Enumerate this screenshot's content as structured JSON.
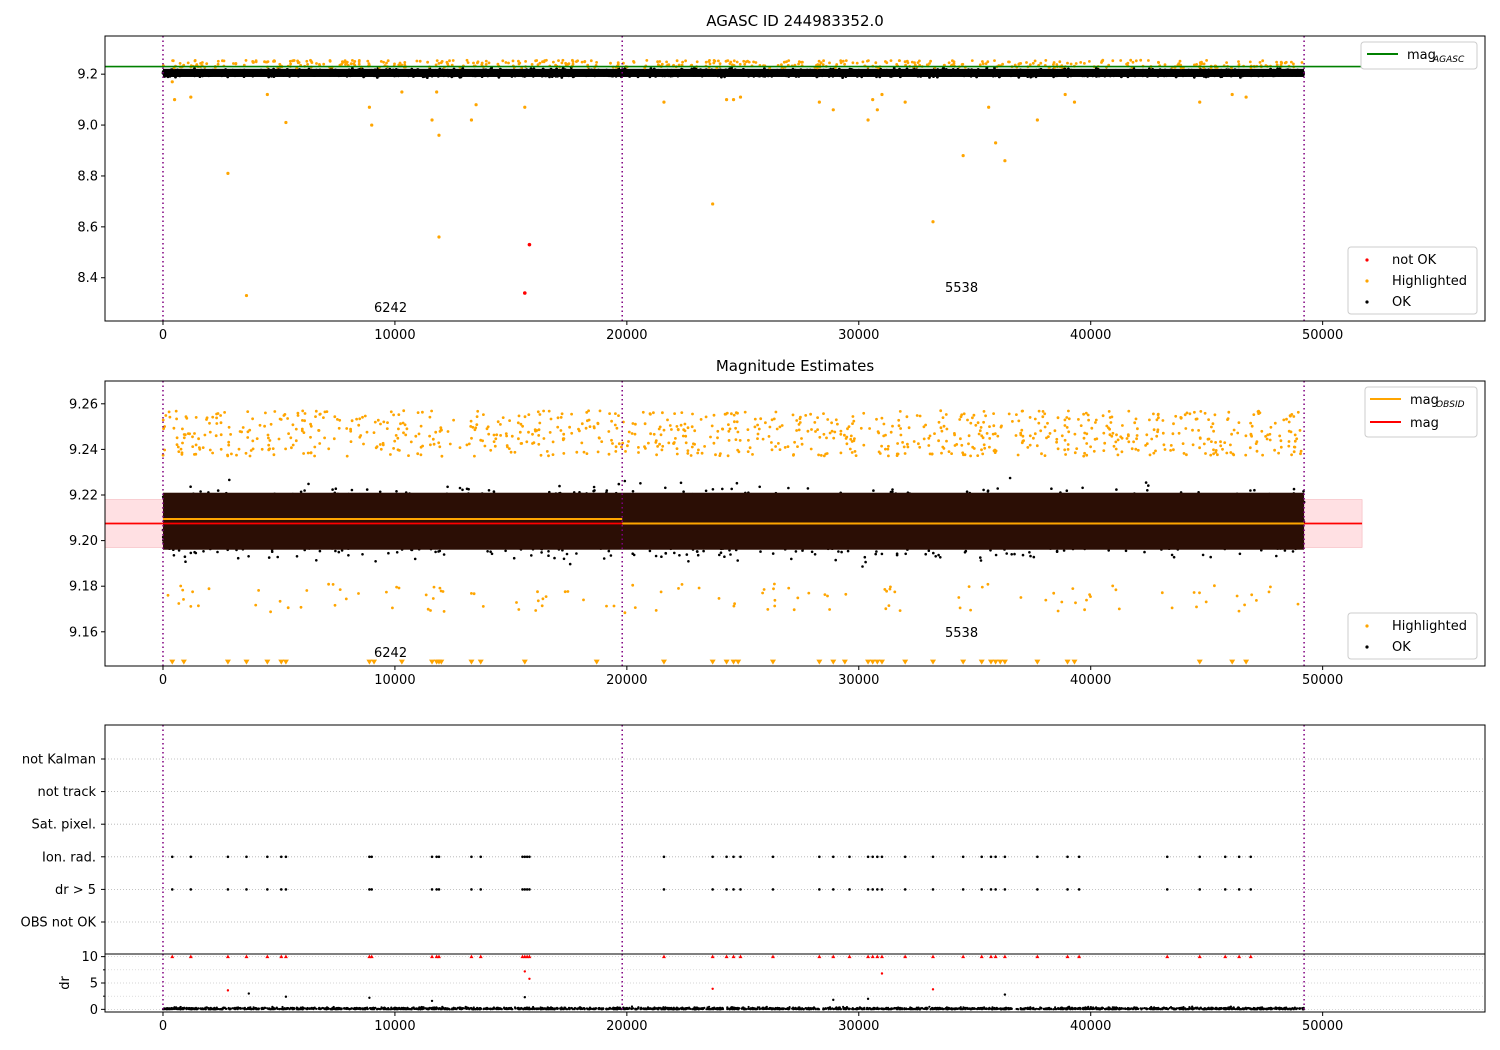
{
  "chart_data": [
    {
      "type": "scatter",
      "title": "AGASC ID 244983352.0",
      "xlabel": "",
      "ylabel": "",
      "xlim": [
        -2500,
        57000
      ],
      "ylim": [
        8.23,
        9.35
      ],
      "xticks": [
        0,
        10000,
        20000,
        30000,
        40000,
        50000
      ],
      "xtick_labels": [
        "0",
        "10000",
        "20000",
        "30000",
        "40000",
        "50000"
      ],
      "yticks": [
        8.4,
        8.6,
        8.8,
        9.0,
        9.2
      ],
      "ytick_labels": [
        "8.4",
        "8.6",
        "8.8",
        "9.0",
        "9.2"
      ],
      "obs_boundaries": [
        0,
        19800,
        49200
      ],
      "mag_agasc": 9.23,
      "colors": {
        "ok": "#000000",
        "highlighted": "#ffa500",
        "not_ok": "#ff0000",
        "agasc": "#008000",
        "obs_line": "#800080"
      },
      "ok_band": {
        "x_range": [
          0,
          49200
        ],
        "center": 9.205,
        "half_width": 0.02
      },
      "series": [
        {
          "name": "not OK",
          "points": [
            [
              15800,
              8.53
            ],
            [
              15600,
              8.34
            ]
          ]
        },
        {
          "name": "Highlighted",
          "points": [
            [
              400,
              9.17
            ],
            [
              500,
              9.1
            ],
            [
              1200,
              9.11
            ],
            [
              2800,
              8.81
            ],
            [
              3600,
              8.33
            ],
            [
              4500,
              9.12
            ],
            [
              5300,
              9.01
            ],
            [
              8900,
              9.07
            ],
            [
              9000,
              9.0
            ],
            [
              10300,
              9.13
            ],
            [
              11600,
              9.02
            ],
            [
              11800,
              9.13
            ],
            [
              11900,
              8.96
            ],
            [
              11900,
              8.56
            ],
            [
              13300,
              9.02
            ],
            [
              13500,
              9.08
            ],
            [
              15600,
              9.07
            ],
            [
              21600,
              9.09
            ],
            [
              23700,
              8.69
            ],
            [
              24300,
              9.1
            ],
            [
              24600,
              9.1
            ],
            [
              24900,
              9.11
            ],
            [
              28300,
              9.09
            ],
            [
              28900,
              9.06
            ],
            [
              30400,
              9.02
            ],
            [
              30600,
              9.1
            ],
            [
              30800,
              9.06
            ],
            [
              31000,
              9.12
            ],
            [
              32000,
              9.09
            ],
            [
              33200,
              8.62
            ],
            [
              34500,
              8.88
            ],
            [
              35600,
              9.07
            ],
            [
              35900,
              8.93
            ],
            [
              36300,
              8.86
            ],
            [
              37700,
              9.02
            ],
            [
              38900,
              9.12
            ],
            [
              39300,
              9.09
            ],
            [
              44700,
              9.09
            ],
            [
              46100,
              9.12
            ],
            [
              46700,
              9.11
            ]
          ]
        },
        {
          "name": "OK",
          "points": []
        }
      ],
      "legend": [
        {
          "label": "mag",
          "sub": "AGASC",
          "kind": "line",
          "color": "#008000"
        },
        {
          "label": "not OK",
          "kind": "dot",
          "color": "#ff0000"
        },
        {
          "label": "Highlighted",
          "kind": "dot",
          "color": "#ffa500"
        },
        {
          "label": "OK",
          "kind": "dot",
          "color": "#000000"
        }
      ],
      "annotations": [
        {
          "text": "6242",
          "x": 9200,
          "y": 8.28
        },
        {
          "text": "5538",
          "x": 33800,
          "y": 8.36
        }
      ]
    },
    {
      "type": "scatter",
      "title": "Magnitude Estimates",
      "xlabel": "",
      "ylabel": "",
      "xlim": [
        -2500,
        57000
      ],
      "ylim": [
        9.145,
        9.27
      ],
      "xticks": [
        0,
        10000,
        20000,
        30000,
        40000,
        50000
      ],
      "xtick_labels": [
        "0",
        "10000",
        "20000",
        "30000",
        "40000",
        "50000"
      ],
      "yticks": [
        9.16,
        9.18,
        9.2,
        9.22,
        9.24,
        9.26
      ],
      "ytick_labels": [
        "9.16",
        "9.18",
        "9.20",
        "9.22",
        "9.24",
        "9.26"
      ],
      "obs_boundaries": [
        0,
        19800,
        49200
      ],
      "mag": 9.2075,
      "mag_band": [
        9.197,
        9.218
      ],
      "mag_obsid_segments": [
        {
          "x": [
            0,
            19800
          ],
          "y": 9.2095
        },
        {
          "x": [
            19800,
            49200
          ],
          "y": 9.2075
        }
      ],
      "dense_band": {
        "x_range": [
          0,
          49200
        ],
        "y_range": [
          9.196,
          9.221
        ]
      },
      "colors": {
        "ok": "#000000",
        "highlighted": "#ffa500",
        "mag": "#ff0000",
        "mag_obsid": "#ffa500",
        "band": "#ffe0e3",
        "dense": "#2b0e05"
      },
      "highlighted_low_markers_y": 9.1465,
      "highlighted_low_markers_x": [
        400,
        900,
        2800,
        3600,
        4500,
        5100,
        5300,
        8900,
        9100,
        10300,
        11600,
        11800,
        11900,
        12000,
        13300,
        13700,
        15600,
        18700,
        21600,
        23700,
        24300,
        24600,
        24800,
        26300,
        28300,
        28900,
        29400,
        30400,
        30600,
        30800,
        31000,
        32000,
        33200,
        34500,
        35300,
        35700,
        35900,
        36100,
        36300,
        37700,
        39000,
        39300,
        44700,
        46100,
        46700
      ],
      "series": [
        {
          "name": "Highlighted",
          "points": []
        },
        {
          "name": "OK",
          "points": []
        }
      ],
      "legend": [
        {
          "label": "mag",
          "sub": "OBSID",
          "kind": "line",
          "color": "#ffa500"
        },
        {
          "label": "mag",
          "kind": "line",
          "color": "#ff0000"
        },
        {
          "label": "Highlighted",
          "kind": "dot",
          "color": "#ffa500"
        },
        {
          "label": "OK",
          "kind": "dot",
          "color": "#000000"
        }
      ],
      "annotations": [
        {
          "text": "6242",
          "x": 9200,
          "y": 9.149
        },
        {
          "text": "5538",
          "x": 33800,
          "y": 9.158
        }
      ]
    },
    {
      "type": "scatter",
      "title": "",
      "xlabel": "",
      "ylabel": "",
      "xlim": [
        -2500,
        57000
      ],
      "categories": [
        "not Kalman",
        "not track",
        "Sat. pixel.",
        "Ion. rad.",
        "dr > 5",
        "OBS not OK"
      ],
      "obs_boundaries": [
        0,
        19800,
        49200
      ],
      "flag_x": [
        400,
        1200,
        2800,
        3600,
        4500,
        5100,
        5300,
        8900,
        9000,
        11600,
        11800,
        11900,
        13300,
        13700,
        15500,
        15600,
        15700,
        15800,
        21600,
        23700,
        24300,
        24600,
        24900,
        26300,
        28300,
        28900,
        29600,
        30400,
        30600,
        30800,
        31000,
        32000,
        33200,
        34500,
        35300,
        35700,
        35900,
        36300,
        37700,
        39000,
        39500,
        43300,
        44700,
        45800,
        46400,
        46900
      ],
      "flagged_rows": [
        "Ion. rad.",
        "dr > 5"
      ]
    },
    {
      "type": "scatter",
      "title": "",
      "xlabel": "",
      "ylabel": "dr",
      "xlim": [
        -2500,
        57000
      ],
      "ylim": [
        -0.5,
        10.5
      ],
      "yticks": [
        0,
        5,
        10
      ],
      "ytick_labels": [
        "0",
        "5",
        "10"
      ],
      "xticks": [
        0,
        10000,
        20000,
        30000,
        40000,
        50000
      ],
      "xtick_labels": [
        "0",
        "10000",
        "20000",
        "30000",
        "40000",
        "50000"
      ],
      "obs_boundaries": [
        0,
        19800,
        49200
      ],
      "clipped_y": 10,
      "series": [
        {
          "name": "dr > 5",
          "points": [
            [
              15600,
              7.2
            ],
            [
              15800,
              5.8
            ],
            [
              31000,
              6.8
            ],
            [
              2800,
              3.6
            ],
            [
              23700,
              3.9
            ],
            [
              33200,
              3.8
            ]
          ]
        },
        {
          "name": "OK",
          "points": [
            [
              3700,
              3.0
            ],
            [
              36300,
              2.8
            ],
            [
              8900,
              2.2
            ],
            [
              11600,
              1.6
            ],
            [
              30400,
              2.0
            ],
            [
              15600,
              2.3
            ],
            [
              5300,
              2.4
            ],
            [
              28900,
              1.8
            ]
          ]
        }
      ]
    }
  ]
}
